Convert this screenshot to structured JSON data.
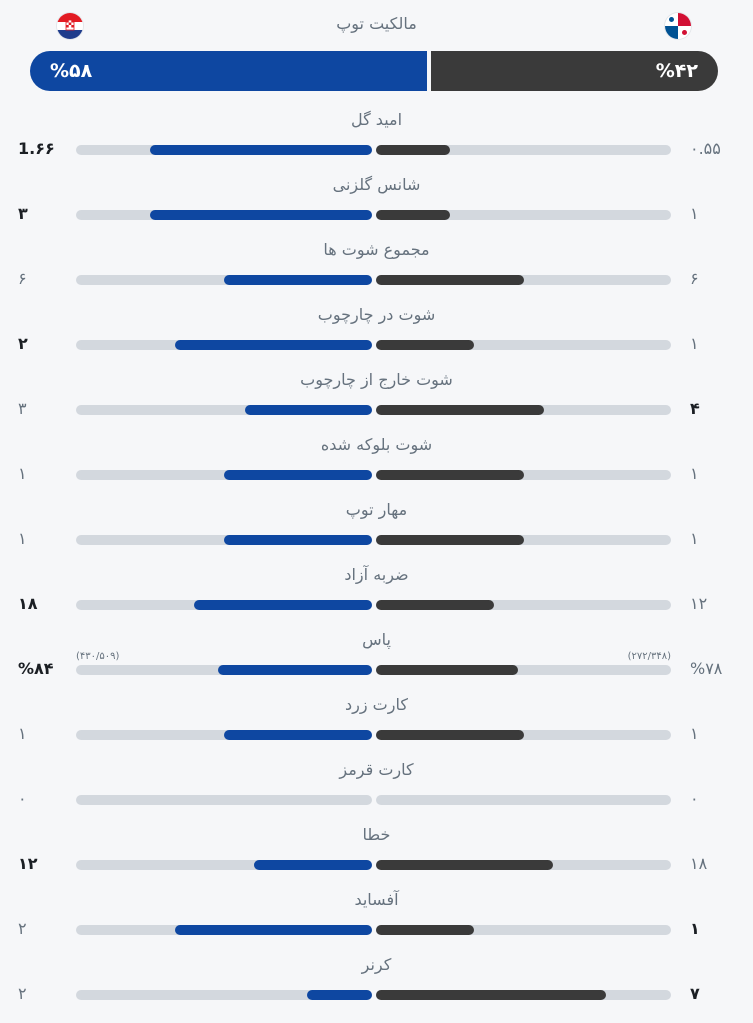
{
  "possession": {
    "title": "مالکیت توپ",
    "left": {
      "value": "%۵۸",
      "percent": 58,
      "flag": "croatia-flag",
      "color": "#0e47a1"
    },
    "right": {
      "value": "%۴۲",
      "percent": 42,
      "flag": "panama-flag",
      "color": "#3a3a3a"
    }
  },
  "stats": [
    {
      "label": "امید گل",
      "left": "1.۶۶",
      "right": "۰.۵۵",
      "left_bold": true,
      "right_bold": false,
      "left_fill": 0.75,
      "right_fill": 0.25
    },
    {
      "label": "شانس گلزنی",
      "left": "۳",
      "right": "۱",
      "left_bold": true,
      "right_bold": false,
      "left_fill": 0.75,
      "right_fill": 0.25
    },
    {
      "label": "مجموع شوت ها",
      "left": "۶",
      "right": "۶",
      "left_bold": false,
      "right_bold": false,
      "left_fill": 0.5,
      "right_fill": 0.5
    },
    {
      "label": "شوت در چارچوب",
      "left": "۲",
      "right": "۱",
      "left_bold": true,
      "right_bold": false,
      "left_fill": 0.667,
      "right_fill": 0.333
    },
    {
      "label": "شوت خارج از چارچوب",
      "left": "۳",
      "right": "۴",
      "left_bold": false,
      "right_bold": true,
      "left_fill": 0.43,
      "right_fill": 0.57
    },
    {
      "label": "شوت بلوکه شده",
      "left": "۱",
      "right": "۱",
      "left_bold": false,
      "right_bold": false,
      "left_fill": 0.5,
      "right_fill": 0.5
    },
    {
      "label": "مهار توپ",
      "left": "۱",
      "right": "۱",
      "left_bold": false,
      "right_bold": false,
      "left_fill": 0.5,
      "right_fill": 0.5
    },
    {
      "label": "ضربه آزاد",
      "left": "۱۸",
      "right": "۱۲",
      "left_bold": true,
      "right_bold": false,
      "left_fill": 0.6,
      "right_fill": 0.4
    },
    {
      "label": "پاس",
      "left": "%۸۴",
      "right": "%۷۸",
      "left_bold": true,
      "right_bold": false,
      "left_fill": 0.52,
      "right_fill": 0.48,
      "left_sub": "(۴۳۰/۵۰۹)",
      "right_sub": "(۲۷۲/۳۴۸)"
    },
    {
      "label": "کارت زرد",
      "left": "۱",
      "right": "۱",
      "left_bold": false,
      "right_bold": false,
      "left_fill": 0.5,
      "right_fill": 0.5
    },
    {
      "label": "کارت قرمز",
      "left": "۰",
      "right": "۰",
      "left_bold": false,
      "right_bold": false,
      "left_fill": 0,
      "right_fill": 0
    },
    {
      "label": "خطا",
      "left": "۱۲",
      "right": "۱۸",
      "left_bold": true,
      "right_bold": false,
      "left_fill": 0.4,
      "right_fill": 0.6
    },
    {
      "label": "آفساید",
      "left": "۲",
      "right": "۱",
      "left_bold": false,
      "right_bold": true,
      "left_fill": 0.667,
      "right_fill": 0.333
    },
    {
      "label": "کرنر",
      "left": "۲",
      "right": "۷",
      "left_bold": false,
      "right_bold": true,
      "left_fill": 0.22,
      "right_fill": 0.78
    }
  ]
}
